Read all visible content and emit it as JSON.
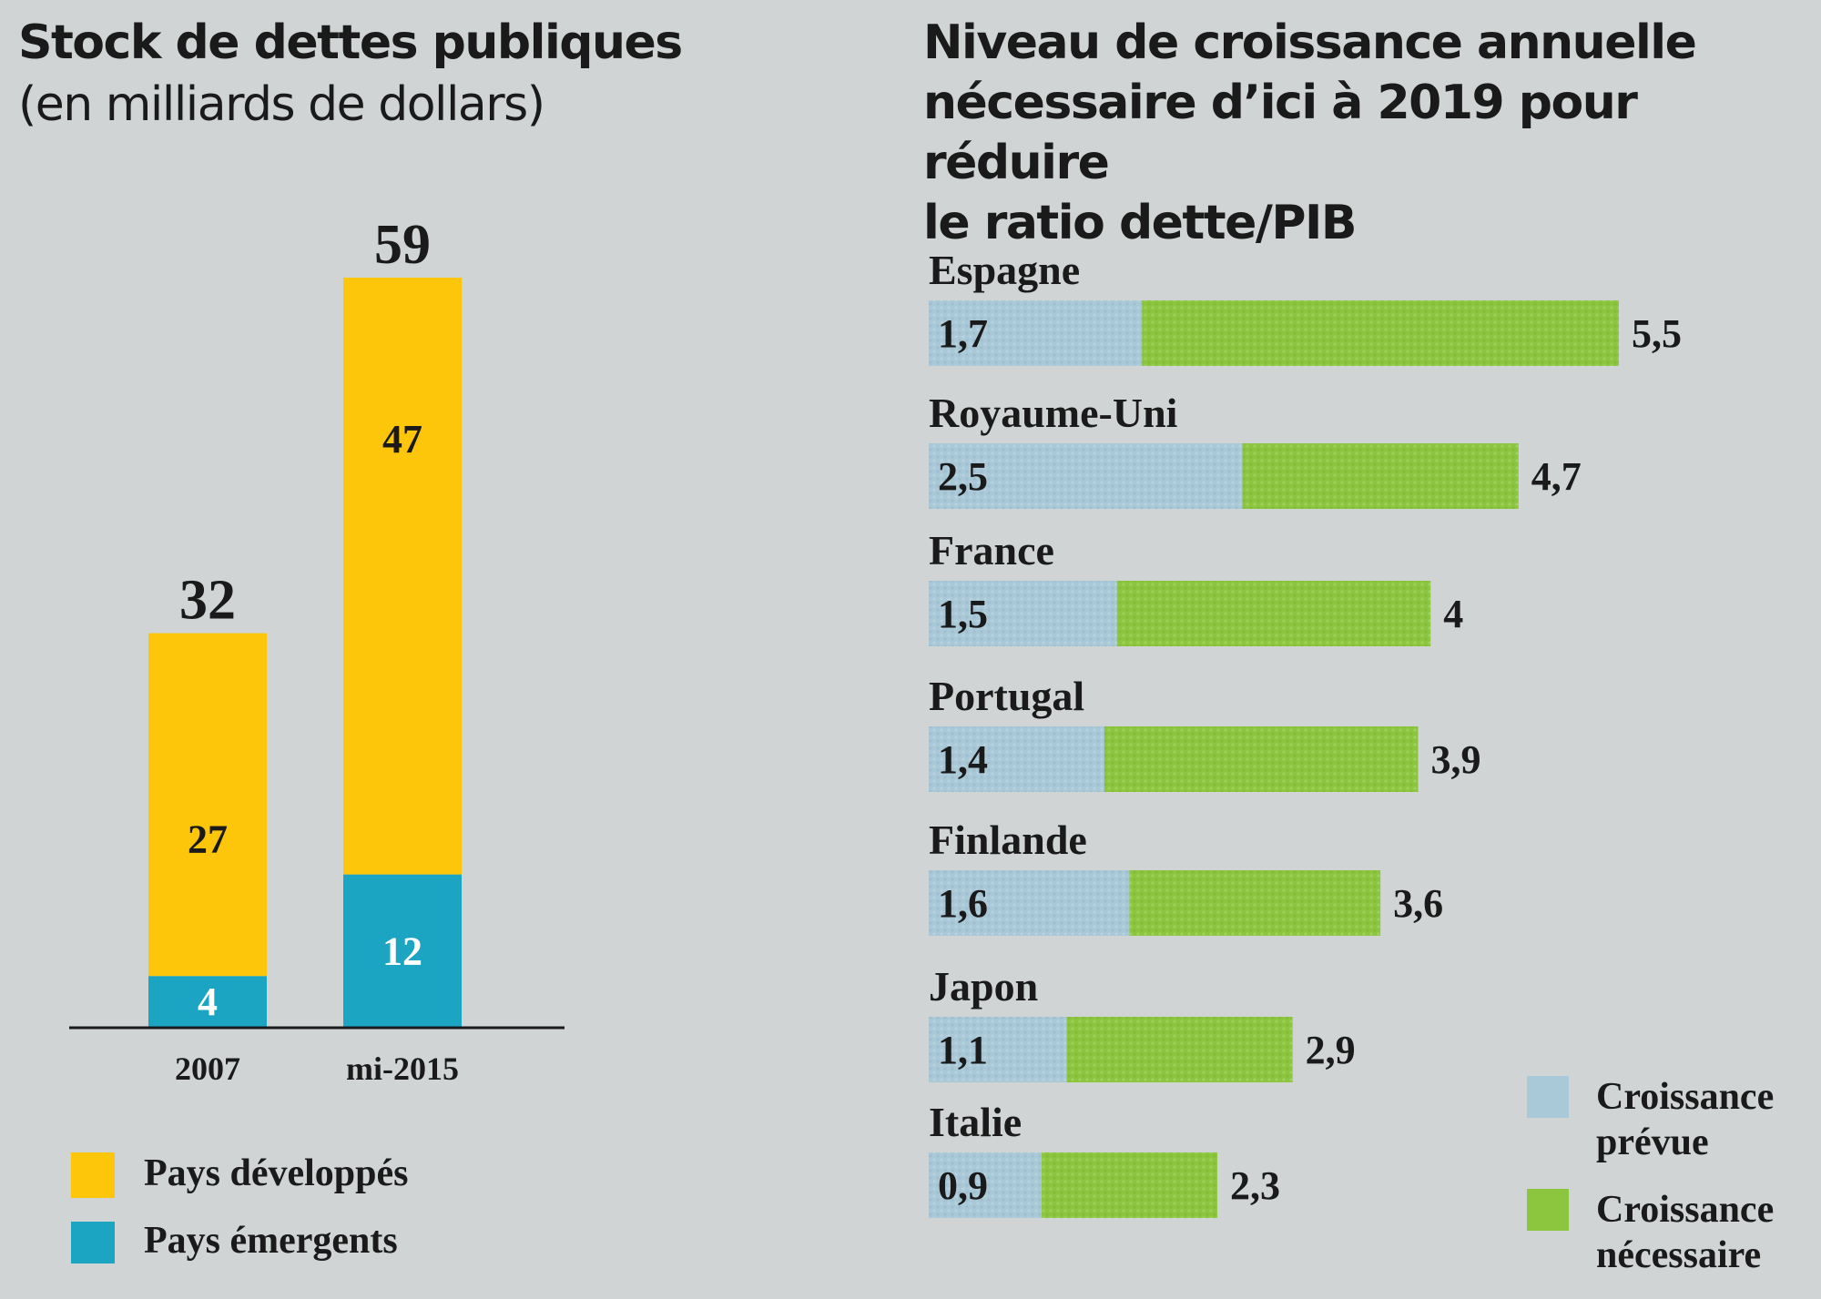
{
  "colors": {
    "background": "#d0d4d5",
    "developed": "#fdc60a",
    "emerging": "#1ba5c3",
    "forecast": "#a9c8d8",
    "required": "#8cc63e",
    "text": "#1a1a1a",
    "axis": "#1a1a1a"
  },
  "chart_data": [
    {
      "type": "bar",
      "stacked": true,
      "title": "Stock de dettes publiques",
      "subtitle": "(en milliards de dollars)",
      "xlabel": "",
      "ylabel": "",
      "categories": [
        "2007",
        "mi-2015"
      ],
      "series": [
        {
          "name": "Pays émergents",
          "values": [
            4,
            12
          ],
          "color_key": "emerging"
        },
        {
          "name": "Pays développés",
          "values": [
            27,
            47
          ],
          "color_key": "developed"
        }
      ],
      "totals": [
        32,
        59
      ],
      "total_labels": [
        "32",
        "59"
      ],
      "segment_labels": {
        "Pays émergents": [
          "4",
          "12"
        ],
        "Pays développés": [
          "27",
          "47"
        ]
      },
      "ylim": [
        0,
        59
      ],
      "grid": false,
      "legend": {
        "position": "bottom-left",
        "items": [
          {
            "label": "Pays développés",
            "color_key": "developed"
          },
          {
            "label": "Pays émergents",
            "color_key": "emerging"
          }
        ]
      }
    },
    {
      "type": "bar",
      "orientation": "horizontal",
      "title": "Niveau de croissance annuelle nécessaire d’ici à 2019 pour réduire le ratio dette/PIB",
      "title_lines": [
        "Niveau de croissance annuelle",
        "nécessaire d’ici à 2019 pour réduire",
        "le ratio dette/PIB"
      ],
      "categories": [
        "Espagne",
        "Royaume-Uni",
        "France",
        "Portugal",
        "Finlande",
        "Japon",
        "Italie"
      ],
      "series": [
        {
          "name": "Croissance prévue",
          "values": [
            1.7,
            2.5,
            1.5,
            1.4,
            1.6,
            1.1,
            0.9
          ],
          "labels": [
            "1,7",
            "2,5",
            "1,5",
            "1,4",
            "1,6",
            "1,1",
            "0,9"
          ],
          "color_key": "forecast"
        },
        {
          "name": "Croissance nécessaire",
          "values": [
            5.5,
            4.7,
            4,
            3.9,
            3.6,
            2.9,
            2.3
          ],
          "labels": [
            "5,5",
            "4,7",
            "4",
            "3,9",
            "3,6",
            "2,9",
            "2,3"
          ],
          "color_key": "required"
        }
      ],
      "note": "Croissance nécessaire bar spans from 0 to its value; the prévue portion overlays the start.",
      "xlim": [
        0,
        5.5
      ],
      "grid": false,
      "legend": {
        "position": "bottom-right",
        "items": [
          {
            "label_lines": [
              "Croissance",
              "prévue"
            ],
            "color_key": "forecast"
          },
          {
            "label_lines": [
              "Croissance",
              "nécessaire"
            ],
            "color_key": "required"
          }
        ]
      }
    }
  ]
}
